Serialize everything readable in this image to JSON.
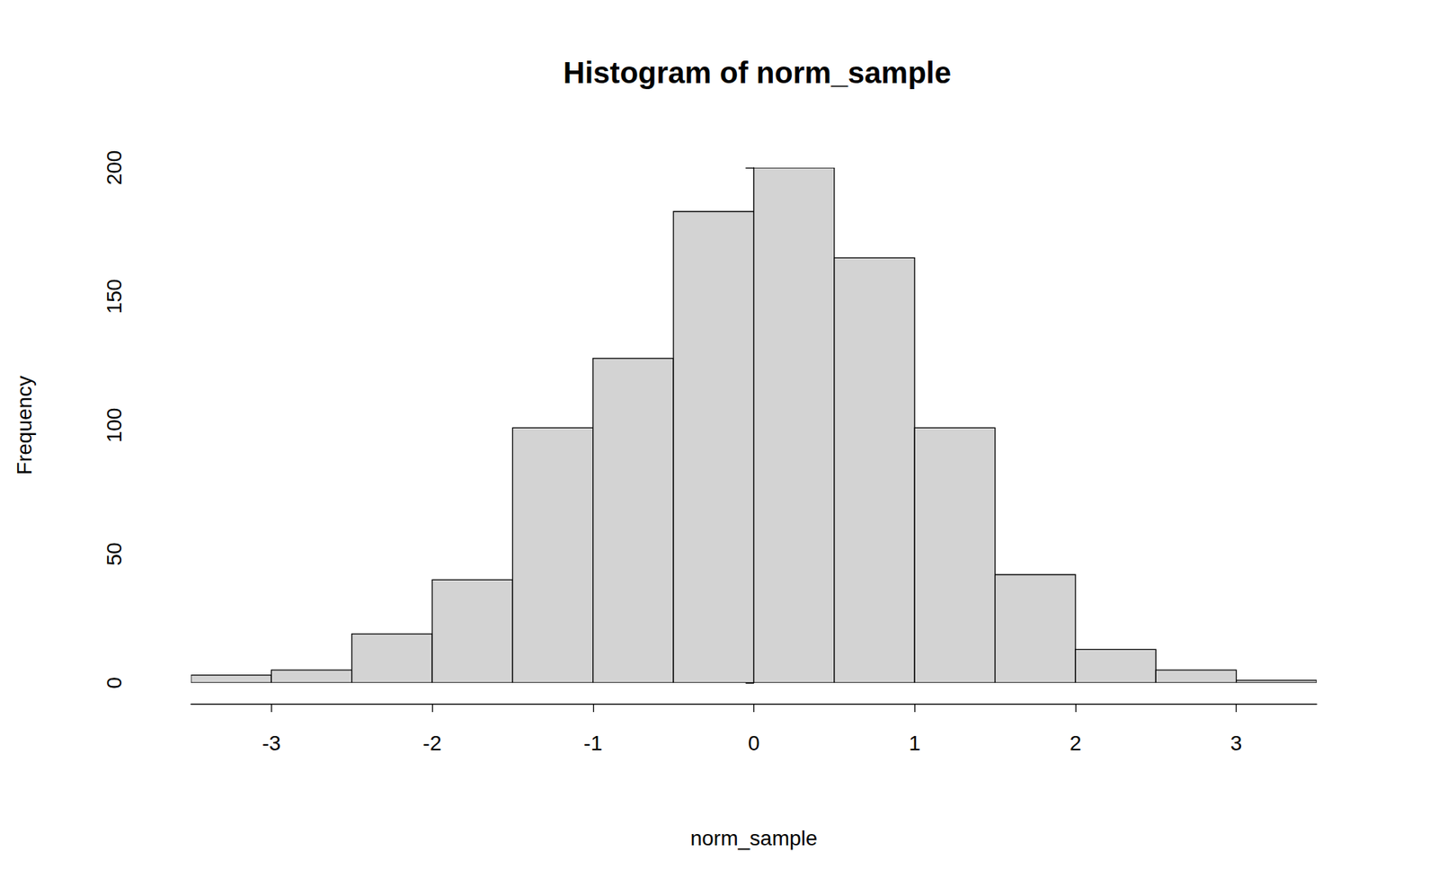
{
  "chart_data": {
    "type": "histogram",
    "title": "Histogram of norm_sample",
    "xlabel": "norm_sample",
    "ylabel": "Frequency",
    "bins": [
      -3.5,
      -3,
      -2.5,
      -2,
      -1.5,
      -1,
      -0.5,
      0,
      0.5,
      1,
      1.5,
      2,
      2.5,
      3,
      3.5
    ],
    "counts": [
      3,
      5,
      19,
      40,
      99,
      126,
      183,
      200,
      165,
      99,
      42,
      13,
      5,
      1
    ],
    "color": "#d3d3d3",
    "xlim": [
      -3.5,
      3.5
    ],
    "xticks": [
      -3,
      -2,
      -1,
      0,
      1,
      2,
      3
    ],
    "ylim": [
      0,
      200
    ],
    "yticks": [
      0,
      50,
      100,
      150,
      200
    ]
  }
}
